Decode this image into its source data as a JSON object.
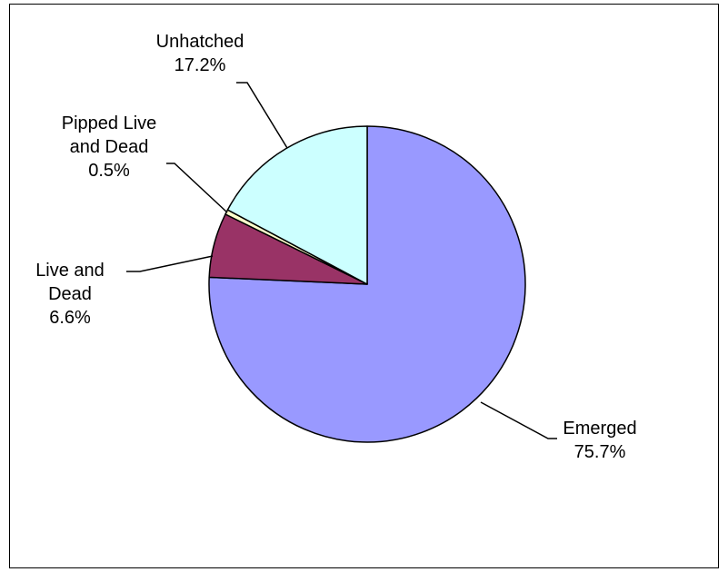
{
  "chart_data": {
    "type": "pie",
    "title": "",
    "slices": [
      {
        "label_lines": [
          "Emerged"
        ],
        "value": 75.7,
        "value_label": "75.7%",
        "color": "#9999FF"
      },
      {
        "label_lines": [
          "Live and",
          "Dead"
        ],
        "value": 6.6,
        "value_label": "6.6%",
        "color": "#993366"
      },
      {
        "label_lines": [
          "Pipped Live",
          "and Dead"
        ],
        "value": 0.5,
        "value_label": "0.5%",
        "color": "#FFFFCC"
      },
      {
        "label_lines": [
          "Unhatched"
        ],
        "value": 17.2,
        "value_label": "17.2%",
        "color": "#CCFFFF"
      }
    ],
    "start_angle_deg": 0,
    "direction": "clockwise",
    "legend": "none",
    "data_labels": "outside with leader lines"
  }
}
